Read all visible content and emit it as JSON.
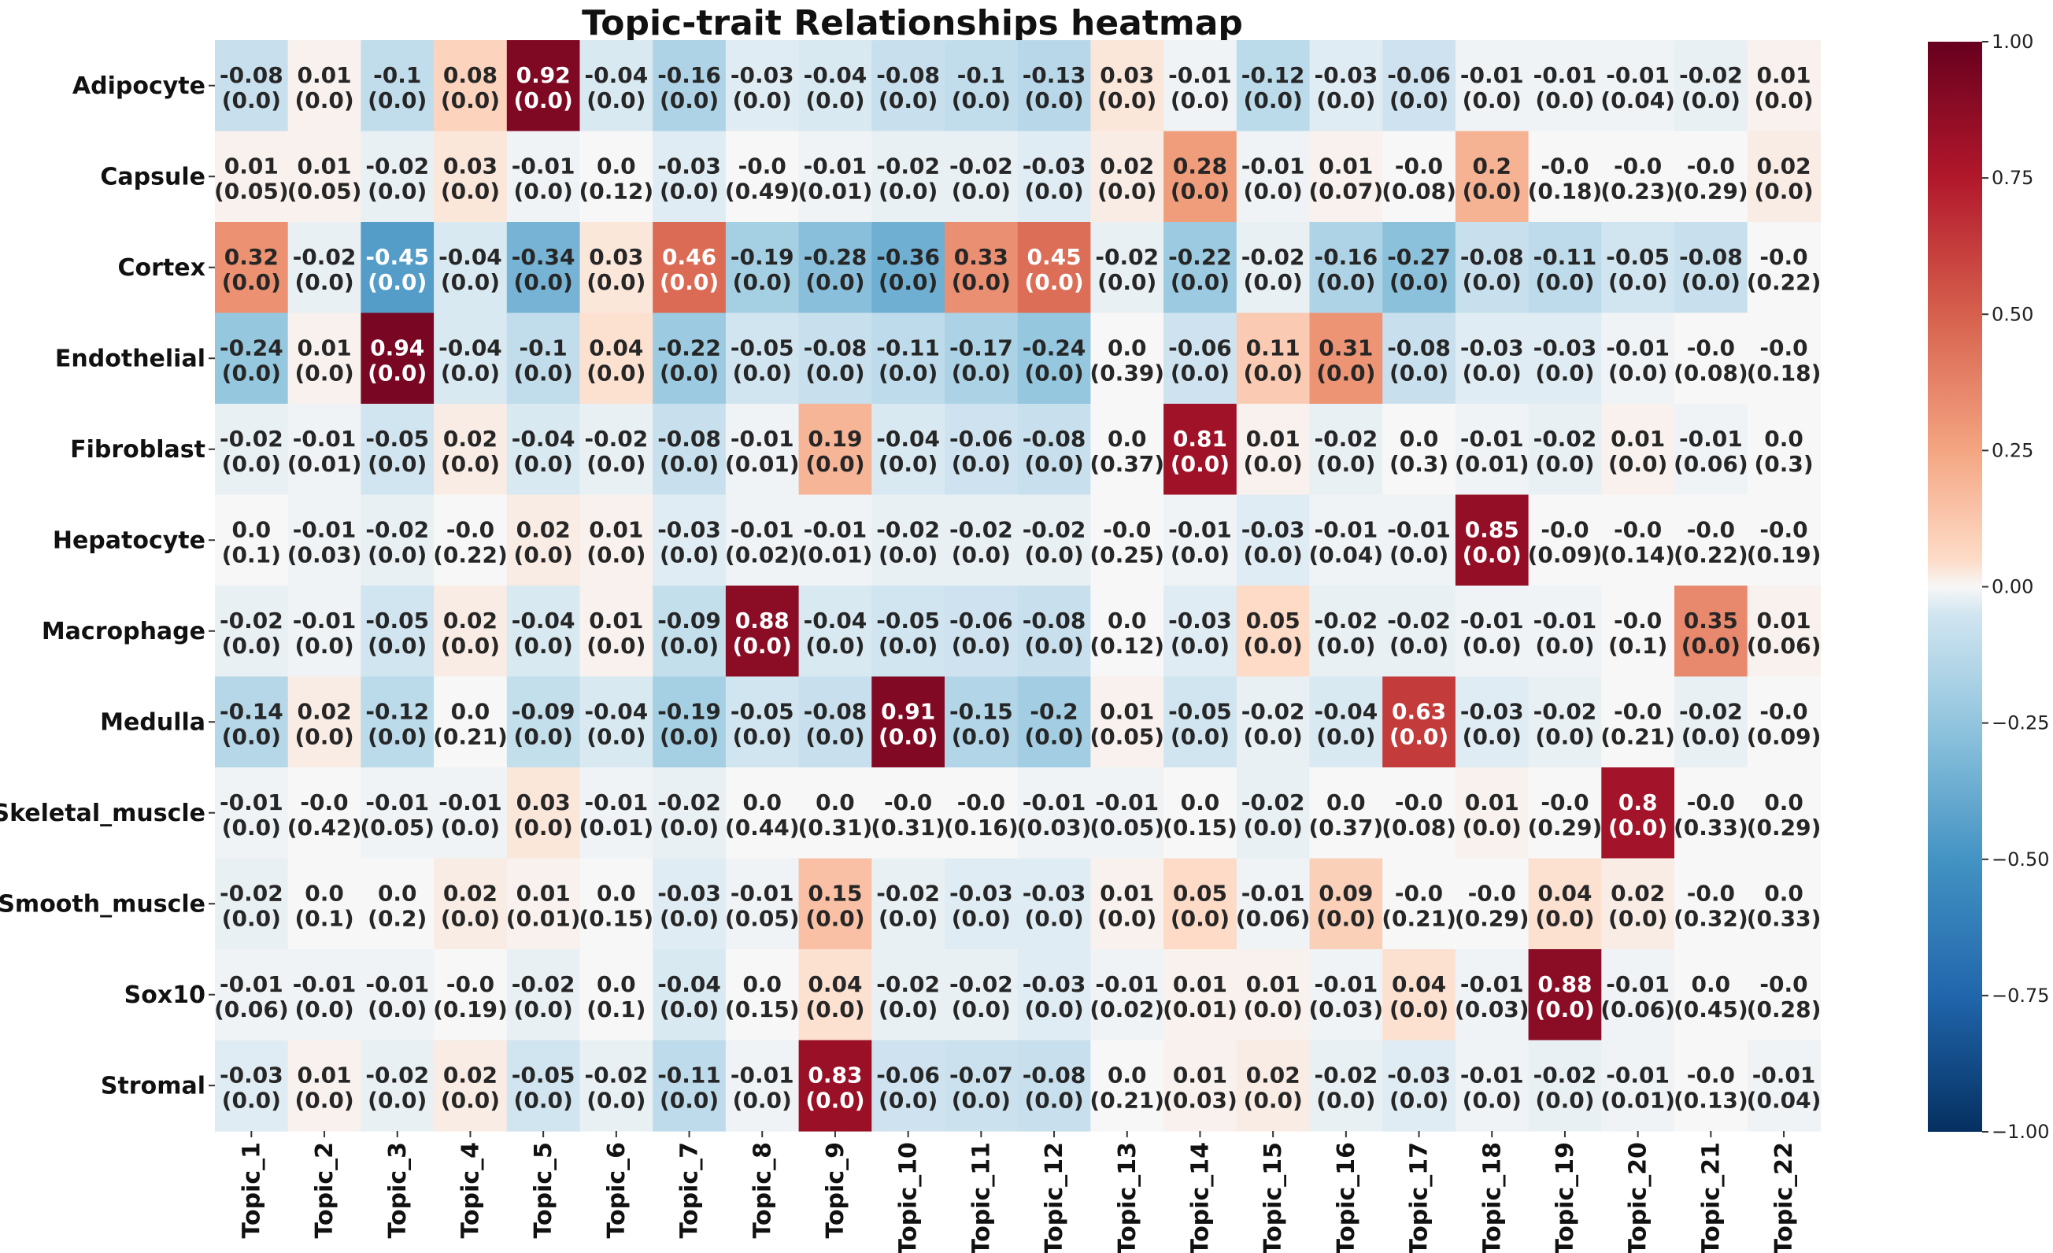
{
  "chart_data": {
    "type": "heatmap",
    "title": "Topic-trait Relationships heatmap",
    "xlabel": "",
    "ylabel": "",
    "rows": [
      "Adipocyte",
      "Capsule",
      "Cortex",
      "Endothelial",
      "Fibroblast",
      "Hepatocyte",
      "Macrophage",
      "Medulla",
      "Skeletal_muscle",
      "Smooth_muscle",
      "Sox10",
      "Stromal"
    ],
    "columns": [
      "Topic_1",
      "Topic_2",
      "Topic_3",
      "Topic_4",
      "Topic_5",
      "Topic_6",
      "Topic_7",
      "Topic_8",
      "Topic_9",
      "Topic_10",
      "Topic_11",
      "Topic_12",
      "Topic_13",
      "Topic_14",
      "Topic_15",
      "Topic_16",
      "Topic_17",
      "Topic_18",
      "Topic_19",
      "Topic_20",
      "Topic_21",
      "Topic_22"
    ],
    "values": [
      [
        "-0.08",
        "0.01",
        "-0.1",
        "0.08",
        "0.92",
        "-0.04",
        "-0.16",
        "-0.03",
        "-0.04",
        "-0.08",
        "-0.1",
        "-0.13",
        "0.03",
        "-0.01",
        "-0.12",
        "-0.03",
        "-0.06",
        "-0.01",
        "-0.01",
        "-0.01",
        "-0.02",
        "0.01"
      ],
      [
        "0.01",
        "0.01",
        "-0.02",
        "0.03",
        "-0.01",
        "0.0",
        "-0.03",
        "-0.0",
        "-0.01",
        "-0.02",
        "-0.02",
        "-0.03",
        "0.02",
        "0.28",
        "-0.01",
        "0.01",
        "-0.0",
        "0.2",
        "-0.0",
        "-0.0",
        "-0.0",
        "0.02"
      ],
      [
        "0.32",
        "-0.02",
        "-0.45",
        "-0.04",
        "-0.34",
        "0.03",
        "0.46",
        "-0.19",
        "-0.28",
        "-0.36",
        "0.33",
        "0.45",
        "-0.02",
        "-0.22",
        "-0.02",
        "-0.16",
        "-0.27",
        "-0.08",
        "-0.11",
        "-0.05",
        "-0.08",
        "-0.0"
      ],
      [
        "-0.24",
        "0.01",
        "0.94",
        "-0.04",
        "-0.1",
        "0.04",
        "-0.22",
        "-0.05",
        "-0.08",
        "-0.11",
        "-0.17",
        "-0.24",
        "0.0",
        "-0.06",
        "0.11",
        "0.31",
        "-0.08",
        "-0.03",
        "-0.03",
        "-0.01",
        "-0.0",
        "-0.0"
      ],
      [
        "-0.02",
        "-0.01",
        "-0.05",
        "0.02",
        "-0.04",
        "-0.02",
        "-0.08",
        "-0.01",
        "0.19",
        "-0.04",
        "-0.06",
        "-0.08",
        "0.0",
        "0.81",
        "0.01",
        "-0.02",
        "0.0",
        "-0.01",
        "-0.02",
        "0.01",
        "-0.01",
        "0.0"
      ],
      [
        "0.0",
        "-0.01",
        "-0.02",
        "-0.0",
        "0.02",
        "0.01",
        "-0.03",
        "-0.01",
        "-0.01",
        "-0.02",
        "-0.02",
        "-0.02",
        "-0.0",
        "-0.01",
        "-0.03",
        "-0.01",
        "-0.01",
        "0.85",
        "-0.0",
        "-0.0",
        "-0.0",
        "-0.0"
      ],
      [
        "-0.02",
        "-0.01",
        "-0.05",
        "0.02",
        "-0.04",
        "0.01",
        "-0.09",
        "0.88",
        "-0.04",
        "-0.05",
        "-0.06",
        "-0.08",
        "0.0",
        "-0.03",
        "0.05",
        "-0.02",
        "-0.02",
        "-0.01",
        "-0.01",
        "-0.0",
        "0.35",
        "0.01"
      ],
      [
        "-0.14",
        "0.02",
        "-0.12",
        "0.0",
        "-0.09",
        "-0.04",
        "-0.19",
        "-0.05",
        "-0.08",
        "0.91",
        "-0.15",
        "-0.2",
        "0.01",
        "-0.05",
        "-0.02",
        "-0.04",
        "0.63",
        "-0.03",
        "-0.02",
        "-0.0",
        "-0.02",
        "-0.0"
      ],
      [
        "-0.01",
        "-0.0",
        "-0.01",
        "-0.01",
        "0.03",
        "-0.01",
        "-0.02",
        "0.0",
        "0.0",
        "-0.0",
        "-0.0",
        "-0.01",
        "-0.01",
        "0.0",
        "-0.02",
        "0.0",
        "-0.0",
        "0.01",
        "-0.0",
        "0.8",
        "-0.0",
        "0.0"
      ],
      [
        "-0.02",
        "0.0",
        "0.0",
        "0.02",
        "0.01",
        "0.0",
        "-0.03",
        "-0.01",
        "0.15",
        "-0.02",
        "-0.03",
        "-0.03",
        "0.01",
        "0.05",
        "-0.01",
        "0.09",
        "-0.0",
        "-0.0",
        "0.04",
        "0.02",
        "-0.0",
        "0.0"
      ],
      [
        "-0.01",
        "-0.01",
        "-0.01",
        "-0.0",
        "-0.02",
        "0.0",
        "-0.04",
        "0.0",
        "0.04",
        "-0.02",
        "-0.02",
        "-0.03",
        "-0.01",
        "0.01",
        "0.01",
        "-0.01",
        "0.04",
        "-0.01",
        "0.88",
        "-0.01",
        "0.0",
        "-0.0"
      ],
      [
        "-0.03",
        "0.01",
        "-0.02",
        "0.02",
        "-0.05",
        "-0.02",
        "-0.11",
        "-0.01",
        "0.83",
        "-0.06",
        "-0.07",
        "-0.08",
        "0.0",
        "0.01",
        "0.02",
        "-0.02",
        "-0.03",
        "-0.01",
        "-0.02",
        "-0.01",
        "-0.0",
        "-0.01"
      ]
    ],
    "pvalues": [
      [
        "0.0",
        "0.0",
        "0.0",
        "0.0",
        "0.0",
        "0.0",
        "0.0",
        "0.0",
        "0.0",
        "0.0",
        "0.0",
        "0.0",
        "0.0",
        "0.0",
        "0.0",
        "0.0",
        "0.0",
        "0.0",
        "0.0",
        "0.04",
        "0.0",
        "0.0"
      ],
      [
        "0.05",
        "0.05",
        "0.0",
        "0.0",
        "0.0",
        "0.12",
        "0.0",
        "0.49",
        "0.01",
        "0.0",
        "0.0",
        "0.0",
        "0.0",
        "0.0",
        "0.0",
        "0.07",
        "0.08",
        "0.0",
        "0.18",
        "0.23",
        "0.29",
        "0.0"
      ],
      [
        "0.0",
        "0.0",
        "0.0",
        "0.0",
        "0.0",
        "0.0",
        "0.0",
        "0.0",
        "0.0",
        "0.0",
        "0.0",
        "0.0",
        "0.0",
        "0.0",
        "0.0",
        "0.0",
        "0.0",
        "0.0",
        "0.0",
        "0.0",
        "0.0",
        "0.22"
      ],
      [
        "0.0",
        "0.0",
        "0.0",
        "0.0",
        "0.0",
        "0.0",
        "0.0",
        "0.0",
        "0.0",
        "0.0",
        "0.0",
        "0.0",
        "0.39",
        "0.0",
        "0.0",
        "0.0",
        "0.0",
        "0.0",
        "0.0",
        "0.0",
        "0.08",
        "0.18"
      ],
      [
        "0.0",
        "0.01",
        "0.0",
        "0.0",
        "0.0",
        "0.0",
        "0.0",
        "0.01",
        "0.0",
        "0.0",
        "0.0",
        "0.0",
        "0.37",
        "0.0",
        "0.0",
        "0.0",
        "0.3",
        "0.01",
        "0.0",
        "0.0",
        "0.06",
        "0.3"
      ],
      [
        "0.1",
        "0.03",
        "0.0",
        "0.22",
        "0.0",
        "0.0",
        "0.0",
        "0.02",
        "0.01",
        "0.0",
        "0.0",
        "0.0",
        "0.25",
        "0.0",
        "0.0",
        "0.04",
        "0.0",
        "0.0",
        "0.09",
        "0.14",
        "0.22",
        "0.19"
      ],
      [
        "0.0",
        "0.0",
        "0.0",
        "0.0",
        "0.0",
        "0.0",
        "0.0",
        "0.0",
        "0.0",
        "0.0",
        "0.0",
        "0.0",
        "0.12",
        "0.0",
        "0.0",
        "0.0",
        "0.0",
        "0.0",
        "0.0",
        "0.1",
        "0.0",
        "0.06"
      ],
      [
        "0.0",
        "0.0",
        "0.0",
        "0.21",
        "0.0",
        "0.0",
        "0.0",
        "0.0",
        "0.0",
        "0.0",
        "0.0",
        "0.0",
        "0.05",
        "0.0",
        "0.0",
        "0.0",
        "0.0",
        "0.0",
        "0.0",
        "0.21",
        "0.0",
        "0.09"
      ],
      [
        "0.0",
        "0.42",
        "0.05",
        "0.0",
        "0.0",
        "0.01",
        "0.0",
        "0.44",
        "0.31",
        "0.31",
        "0.16",
        "0.03",
        "0.05",
        "0.15",
        "0.0",
        "0.37",
        "0.08",
        "0.0",
        "0.29",
        "0.0",
        "0.33",
        "0.29"
      ],
      [
        "0.0",
        "0.1",
        "0.2",
        "0.0",
        "0.01",
        "0.15",
        "0.0",
        "0.05",
        "0.0",
        "0.0",
        "0.0",
        "0.0",
        "0.0",
        "0.0",
        "0.06",
        "0.0",
        "0.21",
        "0.29",
        "0.0",
        "0.0",
        "0.32",
        "0.33"
      ],
      [
        "0.06",
        "0.0",
        "0.0",
        "0.19",
        "0.0",
        "0.1",
        "0.0",
        "0.15",
        "0.0",
        "0.0",
        "0.0",
        "0.0",
        "0.02",
        "0.01",
        "0.0",
        "0.03",
        "0.0",
        "0.03",
        "0.0",
        "0.06",
        "0.45",
        "0.28"
      ],
      [
        "0.0",
        "0.0",
        "0.0",
        "0.0",
        "0.0",
        "0.0",
        "0.0",
        "0.0",
        "0.0",
        "0.0",
        "0.0",
        "0.0",
        "0.21",
        "0.03",
        "0.0",
        "0.0",
        "0.0",
        "0.0",
        "0.0",
        "0.01",
        "0.13",
        "0.04"
      ]
    ],
    "colorbar": {
      "colormap": "RdBu_r",
      "range": [
        -1.0,
        1.0
      ],
      "ticks": [
        "1.00",
        "0.75",
        "0.50",
        "0.25",
        "0.00",
        "−0.25",
        "−0.50",
        "−0.75",
        "−1.00"
      ],
      "tick_values": [
        1.0,
        0.75,
        0.5,
        0.25,
        0.0,
        -0.25,
        -0.5,
        -0.75,
        -1.0
      ]
    }
  }
}
